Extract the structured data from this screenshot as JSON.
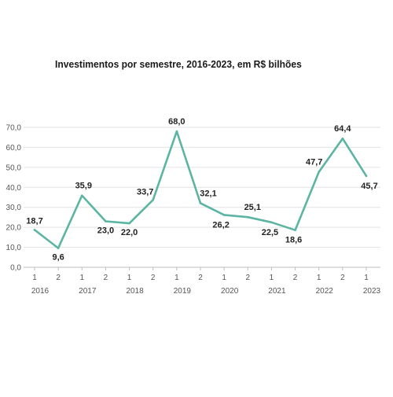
{
  "chart_data": {
    "type": "line",
    "title": "Investimentos por semestre, 2016-2023, em R$ bilhões",
    "xlabel": "",
    "ylabel": "",
    "ylim": [
      0,
      70
    ],
    "y_ticks": [
      "0,0",
      "10,0",
      "20,0",
      "30,0",
      "40,0",
      "50,0",
      "60,0",
      "70,0"
    ],
    "grid": true,
    "line_color": "#5bb5a2",
    "x": [
      {
        "semester": "1",
        "year": "2016"
      },
      {
        "semester": "2",
        "year": ""
      },
      {
        "semester": "1",
        "year": "2017"
      },
      {
        "semester": "2",
        "year": ""
      },
      {
        "semester": "1",
        "year": "2018"
      },
      {
        "semester": "2",
        "year": ""
      },
      {
        "semester": "1",
        "year": "2019"
      },
      {
        "semester": "2",
        "year": ""
      },
      {
        "semester": "1",
        "year": "2020"
      },
      {
        "semester": "2",
        "year": ""
      },
      {
        "semester": "1",
        "year": "2021"
      },
      {
        "semester": "2",
        "year": ""
      },
      {
        "semester": "1",
        "year": "2022"
      },
      {
        "semester": "2",
        "year": ""
      },
      {
        "semester": "1",
        "year": "2023"
      }
    ],
    "values": [
      18.7,
      9.6,
      35.9,
      23.0,
      22.0,
      33.7,
      68.0,
      32.1,
      26.2,
      25.1,
      22.5,
      18.6,
      47.7,
      64.4,
      45.7
    ],
    "data_labels": [
      "18,7",
      "9,6",
      "35,9",
      "23,0",
      "22,0",
      "33,7",
      "68,0",
      "32,1",
      "26,2",
      "25,1",
      "22,5",
      "18,6",
      "47,7",
      "64,4",
      "45,7"
    ]
  }
}
